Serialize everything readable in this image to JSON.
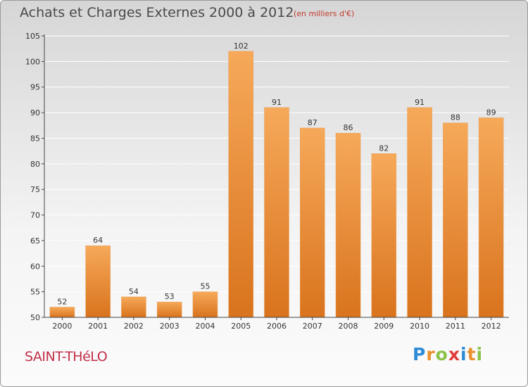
{
  "header": {
    "title": "Achats et Charges Externes 2000 à 2012",
    "unit": "(en milliers d'€)"
  },
  "footer": {
    "place": "SAINT-THéLO",
    "logo_letters": [
      "P",
      "r",
      "o",
      "x",
      "i",
      "t",
      "i"
    ],
    "logo_colors": [
      "#2e8bd6",
      "#e8912d",
      "#8bc34a",
      "#e23b3b",
      "#2e8bd6",
      "#e8912d",
      "#8bc34a"
    ]
  },
  "colors": {
    "bar_top": "#f6a95a",
    "bar_bottom": "#d9731d",
    "axis": "#444444",
    "grid": "#ffffff"
  },
  "chart_data": {
    "type": "bar",
    "title": "Achats et Charges Externes 2000 à 2012",
    "subtitle": "(en milliers d'€)",
    "categories": [
      "2000",
      "2001",
      "2002",
      "2003",
      "2004",
      "2005",
      "2006",
      "2007",
      "2008",
      "2009",
      "2010",
      "2011",
      "2012"
    ],
    "values": [
      52,
      64,
      54,
      53,
      55,
      102,
      91,
      87,
      86,
      82,
      91,
      88,
      89
    ],
    "ylim": [
      50,
      105
    ],
    "yticks": [
      50,
      55,
      60,
      65,
      70,
      75,
      80,
      85,
      90,
      95,
      100,
      105
    ],
    "grid": true,
    "data_labels": true
  }
}
